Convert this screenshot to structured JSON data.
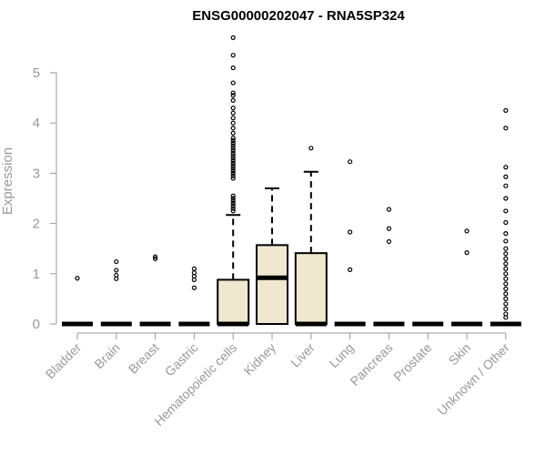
{
  "chart_data": {
    "type": "boxplot",
    "title": "ENSG00000202047 - RNA5SP324",
    "ylabel": "Expression",
    "xlabel": "",
    "ylim": [
      0,
      5.5
    ],
    "yticks": [
      0,
      1,
      2,
      3,
      4,
      5
    ],
    "grid": false,
    "box_color": "#efe8cf",
    "categories": [
      "Bladder",
      "Brain",
      "Breast",
      "Gastric",
      "Hematopoietic cells",
      "Kidney",
      "Liver",
      "Lung",
      "Pancreas",
      "Prostate",
      "Skin",
      "Unknown / Other"
    ],
    "boxes": [
      {
        "q1": 0,
        "median": 0,
        "q3": 0,
        "whisker_low": 0,
        "whisker_high": 0,
        "outliers": [
          0.91
        ]
      },
      {
        "q1": 0,
        "median": 0,
        "q3": 0,
        "whisker_low": 0,
        "whisker_high": 0,
        "outliers": [
          0.9,
          0.97,
          1.07,
          1.24
        ]
      },
      {
        "q1": 0,
        "median": 0,
        "q3": 0,
        "whisker_low": 0,
        "whisker_high": 0,
        "outliers": [
          1.3,
          1.34
        ]
      },
      {
        "q1": 0,
        "median": 0,
        "q3": 0,
        "whisker_low": 0,
        "whisker_high": 0,
        "outliers": [
          0.72,
          0.88,
          0.95,
          1.02,
          1.1
        ]
      },
      {
        "q1": 0,
        "median": 0,
        "q3": 0.88,
        "whisker_low": 0,
        "whisker_high": 2.17,
        "outliers": [
          2.25,
          2.3,
          2.35,
          2.4,
          2.45,
          2.5,
          2.55,
          2.9,
          2.95,
          3.0,
          3.05,
          3.1,
          3.15,
          3.2,
          3.25,
          3.3,
          3.35,
          3.4,
          3.45,
          3.5,
          3.55,
          3.6,
          3.65,
          3.7,
          3.8,
          3.9,
          4.0,
          4.1,
          4.2,
          4.3,
          4.45,
          4.55,
          4.6,
          4.8,
          5.1,
          5.35,
          5.7
        ]
      },
      {
        "q1": 0,
        "median": 0.92,
        "q3": 1.57,
        "whisker_low": 0,
        "whisker_high": 2.7,
        "outliers": []
      },
      {
        "q1": 0,
        "median": 0,
        "q3": 1.41,
        "whisker_low": 0,
        "whisker_high": 3.03,
        "outliers": [
          3.5
        ]
      },
      {
        "q1": 0,
        "median": 0,
        "q3": 0,
        "whisker_low": 0,
        "whisker_high": 0,
        "outliers": [
          1.08,
          1.83,
          3.23
        ]
      },
      {
        "q1": 0,
        "median": 0,
        "q3": 0,
        "whisker_low": 0,
        "whisker_high": 0,
        "outliers": [
          1.64,
          1.9,
          2.28
        ]
      },
      {
        "q1": 0,
        "median": 0,
        "q3": 0,
        "whisker_low": 0,
        "whisker_high": 0,
        "outliers": []
      },
      {
        "q1": 0,
        "median": 0,
        "q3": 0,
        "whisker_low": 0,
        "whisker_high": 0,
        "outliers": [
          1.42,
          1.85
        ]
      },
      {
        "q1": 0,
        "median": 0,
        "q3": 0,
        "whisker_low": 0,
        "whisker_high": 0,
        "outliers": [
          0.13,
          0.2,
          0.3,
          0.4,
          0.5,
          0.6,
          0.7,
          0.8,
          0.9,
          1.0,
          1.1,
          1.2,
          1.3,
          1.4,
          1.5,
          1.65,
          1.8,
          2.02,
          2.25,
          2.5,
          2.75,
          2.93,
          3.12,
          3.9,
          4.25
        ]
      }
    ]
  }
}
